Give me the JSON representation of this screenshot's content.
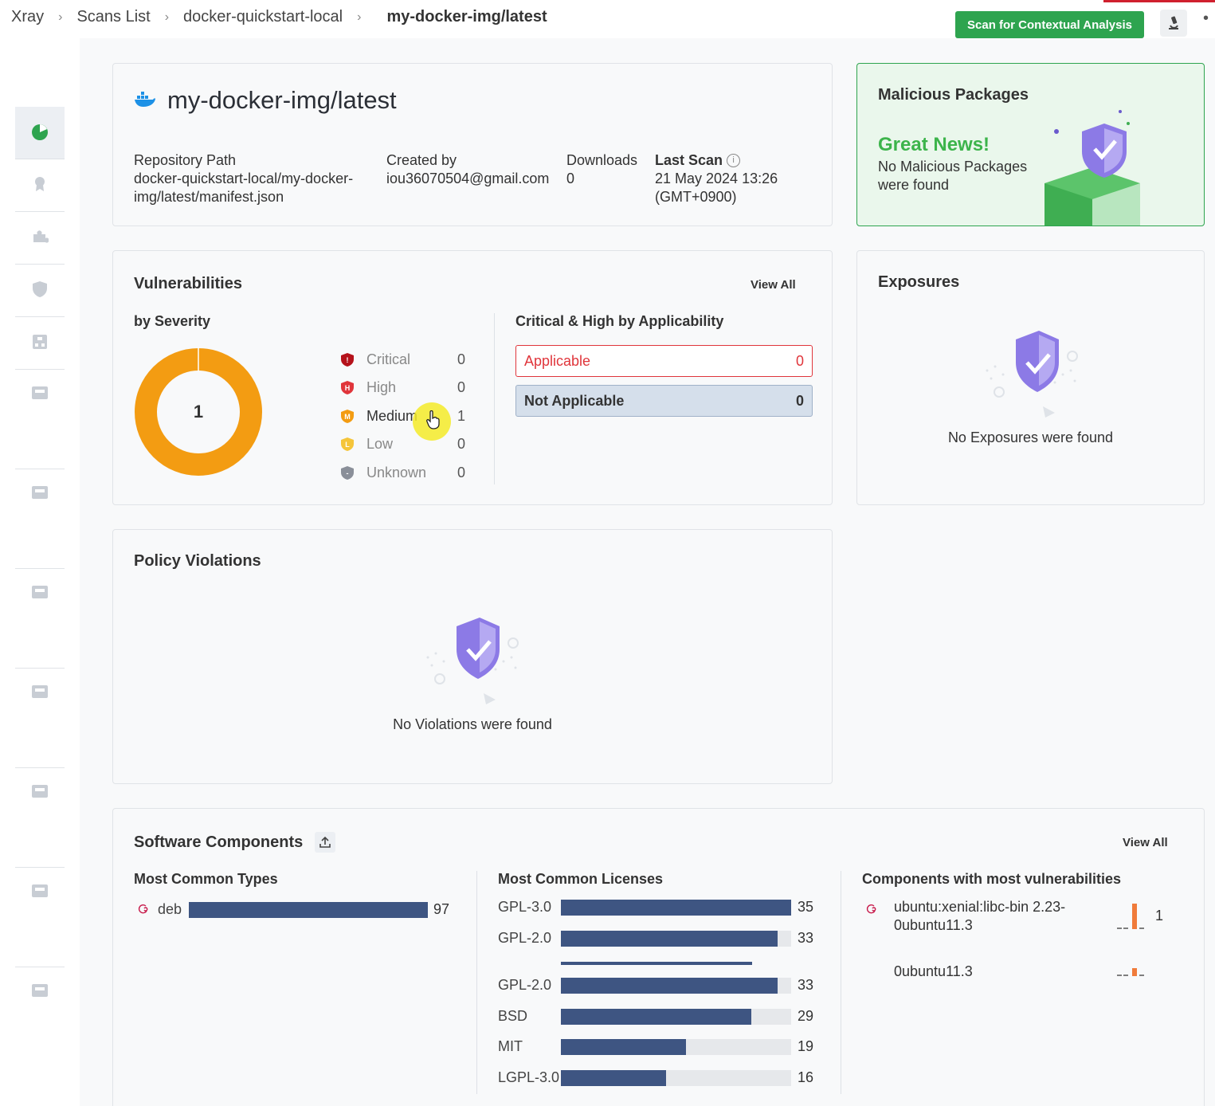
{
  "breadcrumb": [
    "Xray",
    "Scans List",
    "docker-quickstart-local",
    "my-docker-img/latest"
  ],
  "toolbar": {
    "scan_button": "Scan for Contextual Analysis"
  },
  "header": {
    "title": "my-docker-img/latest",
    "repo_path_label": "Repository Path",
    "repo_path_value_1": "docker-quickstart-local/my-docker-",
    "repo_path_value_2": "img/latest/manifest.json",
    "created_by_label": "Created by",
    "created_by_value": "iou36070504@gmail.com",
    "downloads_label": "Downloads",
    "downloads_value": "0",
    "last_scan_label": "Last Scan",
    "last_scan_value_1": "21 May 2024 13:26",
    "last_scan_value_2": "(GMT+0900)"
  },
  "malicious": {
    "title": "Malicious Packages",
    "headline": "Great News!",
    "message_1": "No Malicious Packages",
    "message_2": "were found"
  },
  "vulnerabilities": {
    "title": "Vulnerabilities",
    "view_all": "View All",
    "by_severity_label": "by Severity",
    "total": "1",
    "severities": [
      {
        "name": "Critical",
        "letter": "!",
        "count": "0",
        "color": "#b5121b"
      },
      {
        "name": "High",
        "letter": "H",
        "count": "0",
        "color": "#e0353b"
      },
      {
        "name": "Medium",
        "letter": "M",
        "count": "1",
        "color": "#f39c12"
      },
      {
        "name": "Low",
        "letter": "L",
        "count": "0",
        "color": "#f5c53a"
      },
      {
        "name": "Unknown",
        "letter": "-",
        "count": "0",
        "color": "#8a8f99"
      }
    ],
    "applicability_title": "Critical & High by Applicability",
    "applicable_label": "Applicable",
    "applicable_count": "0",
    "not_applicable_label": "Not Applicable",
    "not_applicable_count": "0"
  },
  "exposures": {
    "title": "Exposures",
    "empty": "No Exposures were found"
  },
  "policy": {
    "title": "Policy Violations",
    "empty": "No Violations were found"
  },
  "software": {
    "title": "Software Components",
    "view_all": "View All",
    "types_title": "Most Common Types",
    "types": [
      {
        "name": "deb",
        "count": 97
      }
    ],
    "licenses_title": "Most Common Licenses",
    "licenses": [
      {
        "name": "GPL-3.0",
        "count": 35
      },
      {
        "name": "GPL-2.0",
        "count": 33
      },
      {
        "name": "GPL-2.0",
        "count": 33
      },
      {
        "name": "BSD",
        "count": 29
      },
      {
        "name": "MIT",
        "count": 19
      },
      {
        "name": "LGPL-3.0",
        "count": 16
      }
    ],
    "licenses_max": 35,
    "components_title": "Components with most vulnerabilities",
    "components": [
      {
        "name_1": "ubuntu:xenial:libc-bin 2.23-",
        "name_2": "0ubuntu11.3",
        "count": "1"
      },
      {
        "name_1": "0ubuntu11.3",
        "count": ""
      }
    ]
  },
  "colors": {
    "accent_green": "#2ea44f",
    "bar": "#3e5582",
    "medium": "#f39c12"
  }
}
